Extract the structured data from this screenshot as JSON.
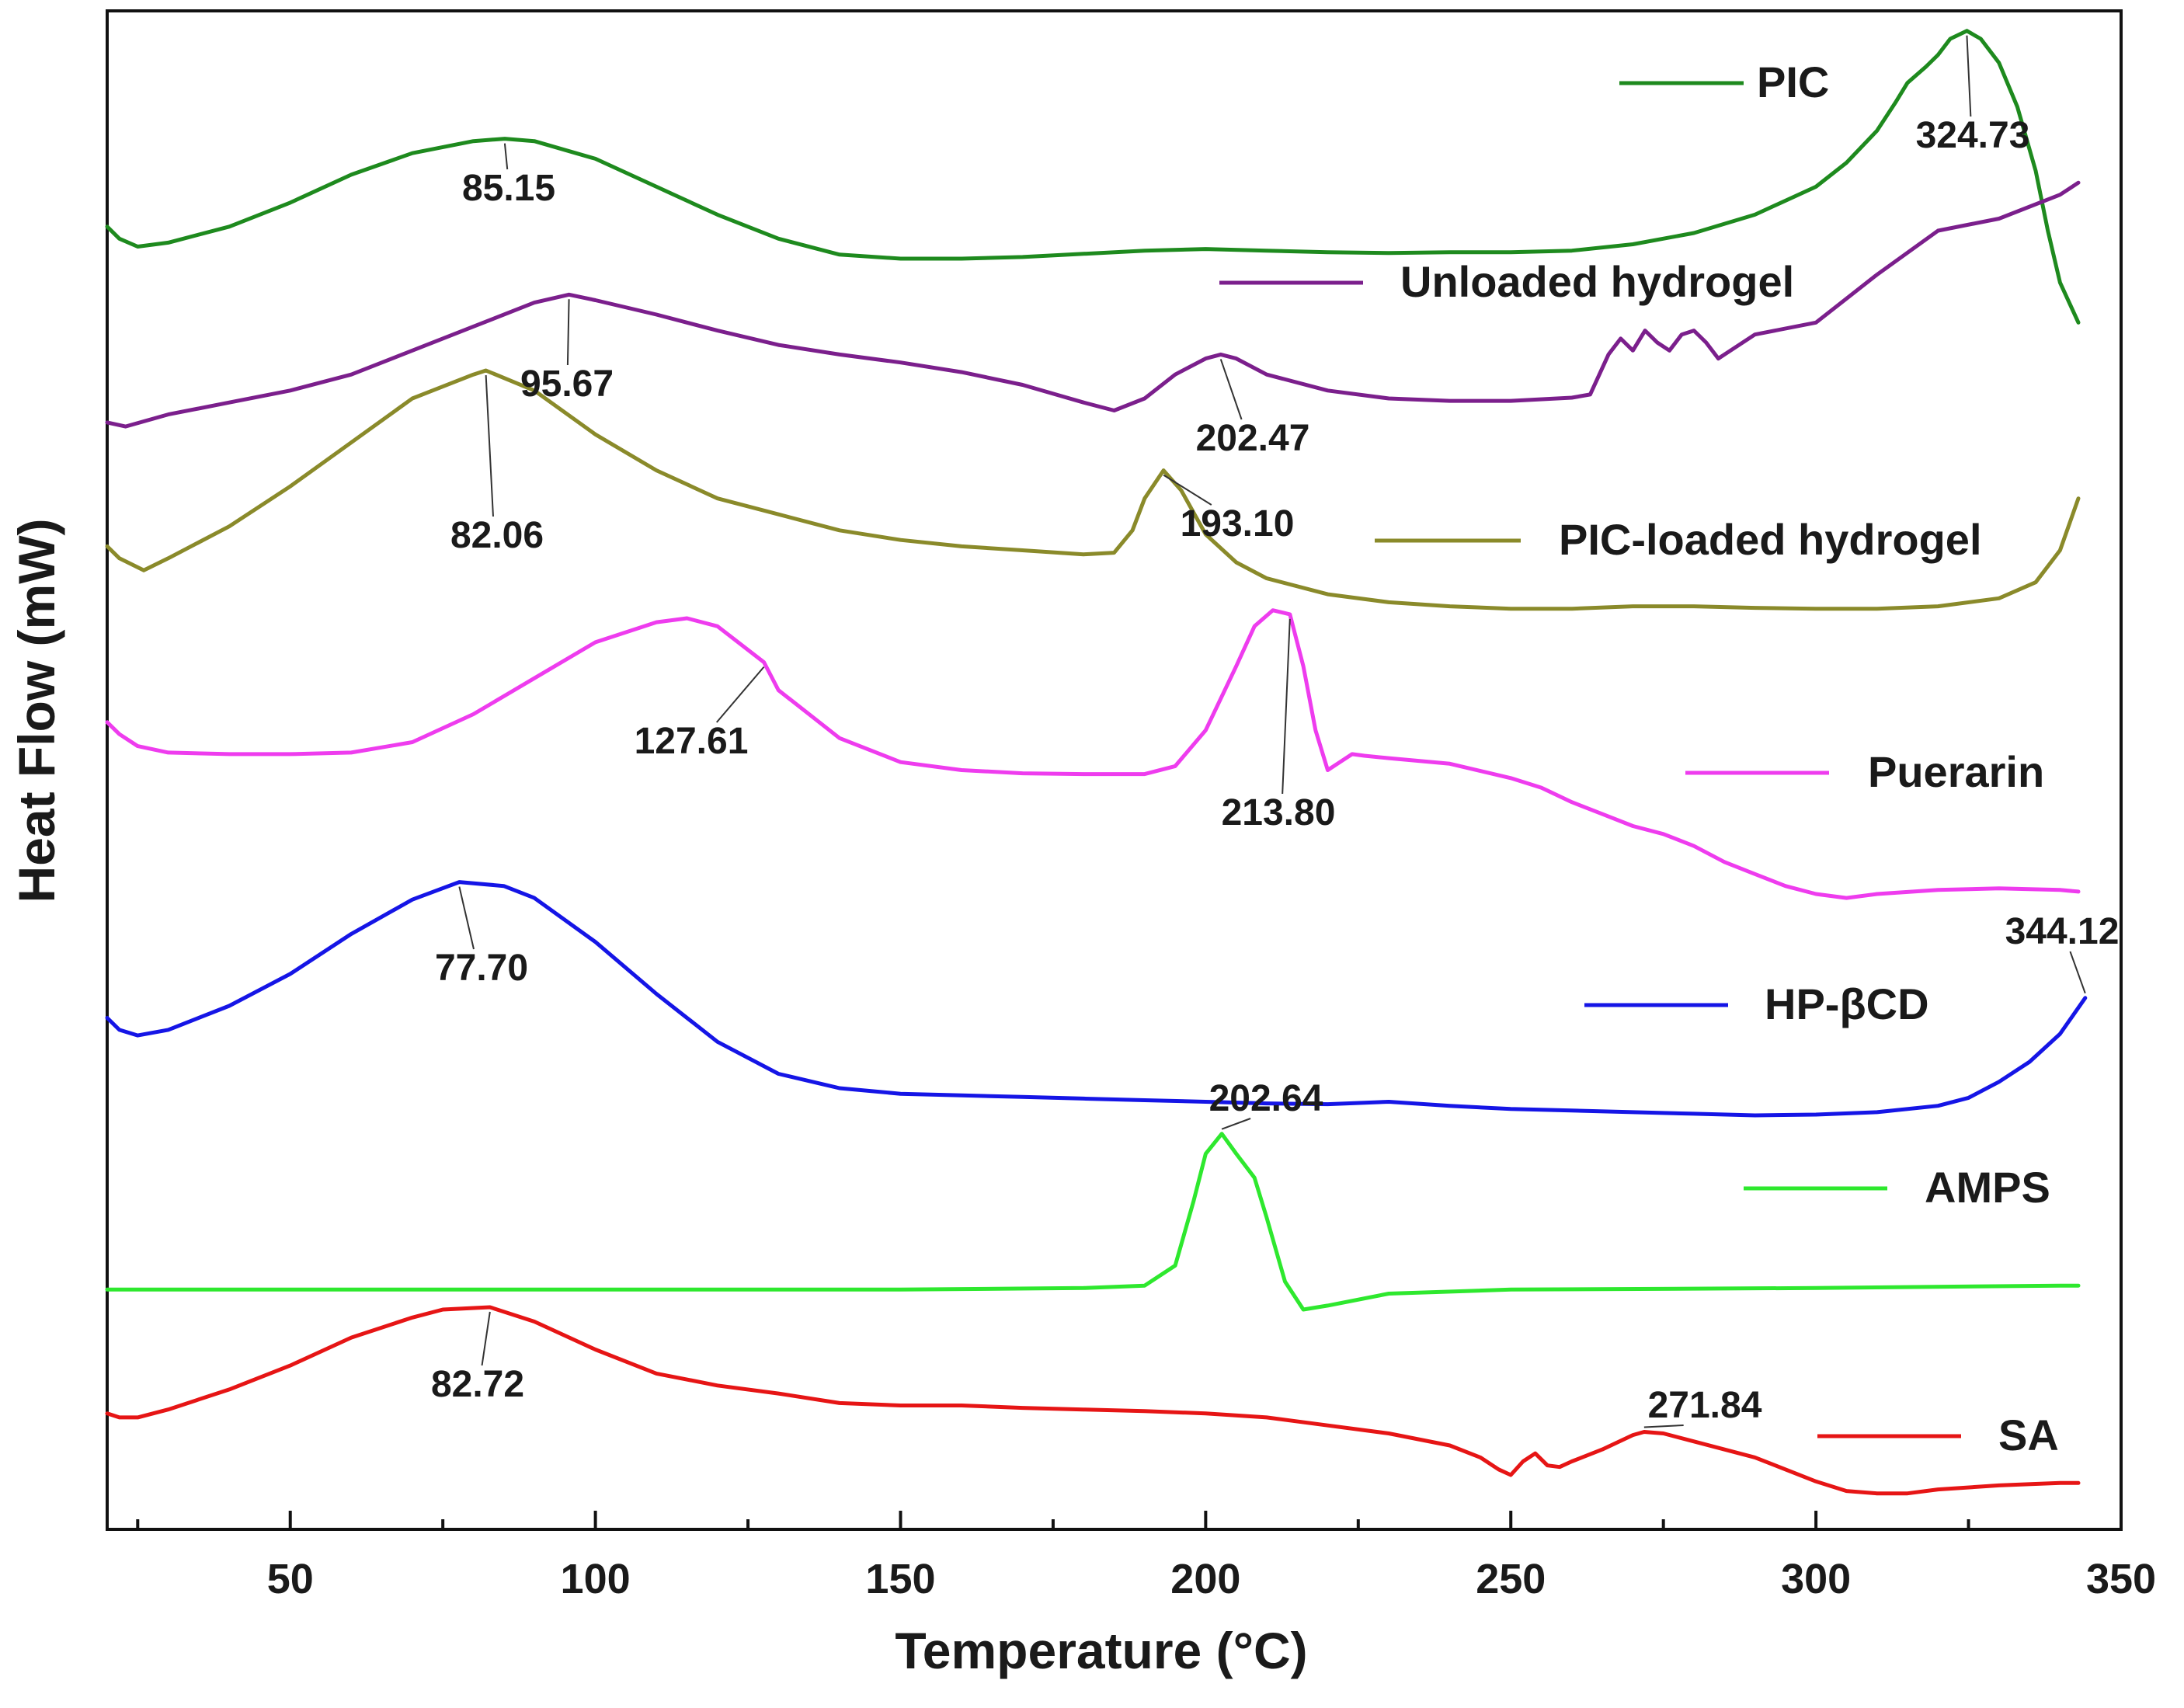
{
  "chart_data": {
    "type": "line",
    "title": "",
    "xlabel": "Temperature (°C)",
    "ylabel": "Heat Flow (mW)",
    "xlim": [
      20,
      350
    ],
    "xticks": [
      50,
      100,
      150,
      200,
      250,
      300,
      350
    ],
    "yticks_shown": false,
    "grid": false,
    "legend": "per-curve, right side",
    "series": [
      {
        "name": "PIC",
        "color": "#1e8a1e",
        "x": [
          20,
          22,
          25,
          30,
          40,
          50,
          60,
          70,
          80,
          85.15,
          90,
          100,
          110,
          120,
          130,
          140,
          150,
          160,
          170,
          180,
          190,
          200,
          210,
          220,
          230,
          240,
          250,
          260,
          270,
          280,
          290,
          300,
          305,
          310,
          313,
          315,
          318,
          320,
          322,
          324.73,
          327,
          330,
          333,
          336,
          338,
          340,
          343
        ],
        "y": [
          6.9,
          6.75,
          6.65,
          6.7,
          6.9,
          7.2,
          7.55,
          7.82,
          7.97,
          8.0,
          7.97,
          7.75,
          7.4,
          7.05,
          6.75,
          6.55,
          6.5,
          6.5,
          6.52,
          6.56,
          6.6,
          6.62,
          6.6,
          6.58,
          6.57,
          6.58,
          6.58,
          6.6,
          6.68,
          6.82,
          7.05,
          7.4,
          7.7,
          8.1,
          8.45,
          8.7,
          8.9,
          9.05,
          9.25,
          9.35,
          9.25,
          8.95,
          8.4,
          7.6,
          6.85,
          6.2,
          5.7
        ]
      },
      {
        "name": "Unloaded hydrogel",
        "color": "#7b1f8c",
        "x": [
          20,
          23,
          30,
          40,
          50,
          60,
          70,
          80,
          90,
          95.67,
          100,
          110,
          120,
          130,
          140,
          150,
          160,
          170,
          180,
          185,
          190,
          195,
          200,
          202.47,
          205,
          210,
          220,
          230,
          240,
          250,
          260,
          263,
          266,
          268,
          270,
          272,
          274,
          276,
          278,
          280,
          282,
          284,
          286,
          290,
          300,
          310,
          320,
          330,
          340,
          343
        ],
        "y": [
          4.45,
          4.4,
          4.55,
          4.7,
          4.85,
          5.05,
          5.35,
          5.65,
          5.95,
          6.05,
          5.98,
          5.8,
          5.6,
          5.42,
          5.3,
          5.2,
          5.08,
          4.92,
          4.7,
          4.6,
          4.75,
          5.05,
          5.25,
          5.3,
          5.25,
          5.05,
          4.85,
          4.75,
          4.72,
          4.72,
          4.76,
          4.8,
          5.3,
          5.5,
          5.35,
          5.6,
          5.45,
          5.35,
          5.55,
          5.6,
          5.45,
          5.25,
          5.35,
          5.55,
          5.7,
          6.3,
          6.85,
          7.0,
          7.3,
          7.45
        ]
      },
      {
        "name": "PIC-loaded hydrogel",
        "color": "#8a8a2a",
        "x": [
          20,
          22,
          26,
          30,
          40,
          50,
          60,
          70,
          80,
          82.06,
          90,
          100,
          110,
          120,
          130,
          140,
          150,
          160,
          170,
          180,
          185,
          188,
          190,
          193.1,
          196,
          200,
          205,
          210,
          220,
          230,
          240,
          250,
          260,
          270,
          280,
          290,
          300,
          310,
          320,
          330,
          336,
          340,
          343
        ],
        "y": [
          2.9,
          2.75,
          2.6,
          2.75,
          3.15,
          3.65,
          4.2,
          4.75,
          5.05,
          5.1,
          4.85,
          4.3,
          3.85,
          3.5,
          3.3,
          3.1,
          2.98,
          2.9,
          2.85,
          2.8,
          2.82,
          3.1,
          3.5,
          3.85,
          3.6,
          3.05,
          2.7,
          2.5,
          2.3,
          2.2,
          2.15,
          2.12,
          2.12,
          2.15,
          2.15,
          2.13,
          2.12,
          2.12,
          2.15,
          2.25,
          2.45,
          2.85,
          3.5
        ]
      },
      {
        "name": "Puerarin",
        "color": "#ee3cee",
        "x": [
          20,
          22,
          25,
          30,
          40,
          50,
          60,
          70,
          80,
          90,
          100,
          110,
          115,
          120,
          127.61,
          130,
          140,
          150,
          160,
          170,
          180,
          190,
          195,
          200,
          205,
          208,
          211,
          213.8,
          216,
          218,
          220,
          222,
          224,
          226,
          230,
          240,
          250,
          255,
          260,
          265,
          270,
          275,
          280,
          285,
          290,
          295,
          300,
          305,
          310,
          320,
          330,
          340,
          343
        ],
        "y": [
          0.7,
          0.55,
          0.4,
          0.32,
          0.3,
          0.3,
          0.32,
          0.45,
          0.8,
          1.25,
          1.7,
          1.95,
          2.0,
          1.9,
          1.45,
          1.1,
          0.5,
          0.2,
          0.1,
          0.06,
          0.05,
          0.05,
          0.15,
          0.6,
          1.4,
          1.9,
          2.1,
          2.05,
          1.4,
          0.6,
          0.1,
          0.2,
          0.3,
          0.28,
          0.25,
          0.18,
          0.0,
          -0.12,
          -0.3,
          -0.45,
          -0.6,
          -0.7,
          -0.85,
          -1.05,
          -1.2,
          -1.35,
          -1.45,
          -1.5,
          -1.45,
          -1.4,
          -1.38,
          -1.4,
          -1.42
        ]
      },
      {
        "name": "HP-βCD",
        "color": "#1515e6",
        "x": [
          20,
          22,
          25,
          30,
          40,
          50,
          60,
          70,
          77.7,
          85,
          90,
          100,
          110,
          120,
          130,
          140,
          150,
          160,
          170,
          180,
          190,
          200,
          210,
          220,
          230,
          240,
          250,
          260,
          270,
          280,
          290,
          300,
          310,
          320,
          325,
          330,
          335,
          340,
          344.12
        ],
        "y": [
          -3.0,
          -3.15,
          -3.22,
          -3.15,
          -2.85,
          -2.45,
          -1.95,
          -1.52,
          -1.3,
          -1.35,
          -1.5,
          -2.05,
          -2.7,
          -3.3,
          -3.7,
          -3.88,
          -3.95,
          -3.97,
          -3.99,
          -4.01,
          -4.03,
          -4.05,
          -4.07,
          -4.08,
          -4.05,
          -4.1,
          -4.14,
          -4.16,
          -4.18,
          -4.2,
          -4.22,
          -4.21,
          -4.18,
          -4.1,
          -4.0,
          -3.8,
          -3.55,
          -3.2,
          -2.75
        ]
      },
      {
        "name": "AMPS",
        "color": "#2ee82e",
        "x": [
          20,
          50,
          100,
          150,
          180,
          190,
          195,
          198,
          200,
          202.64,
          205,
          208,
          210,
          213,
          216,
          220,
          230,
          250,
          300,
          340,
          343
        ],
        "y": [
          -6.4,
          -6.4,
          -6.4,
          -6.4,
          -6.38,
          -6.35,
          -6.1,
          -5.3,
          -4.7,
          -4.45,
          -4.7,
          -5.0,
          -5.5,
          -6.3,
          -6.65,
          -6.6,
          -6.45,
          -6.4,
          -6.38,
          -6.35,
          -6.35
        ]
      },
      {
        "name": "SA",
        "color": "#e61515",
        "x": [
          20,
          22,
          25,
          30,
          40,
          50,
          60,
          70,
          75,
          82.72,
          90,
          100,
          110,
          120,
          130,
          140,
          150,
          160,
          170,
          180,
          190,
          200,
          210,
          220,
          230,
          240,
          245,
          248,
          250,
          252,
          254,
          256,
          258,
          260,
          265,
          270,
          271.84,
          275,
          280,
          290,
          300,
          305,
          310,
          315,
          320,
          330,
          340,
          343
        ],
        "y": [
          -7.95,
          -8.0,
          -8.0,
          -7.9,
          -7.65,
          -7.35,
          -7.0,
          -6.75,
          -6.65,
          -6.62,
          -6.8,
          -7.15,
          -7.45,
          -7.6,
          -7.7,
          -7.82,
          -7.85,
          -7.85,
          -7.88,
          -7.9,
          -7.92,
          -7.95,
          -8.0,
          -8.1,
          -8.2,
          -8.35,
          -8.5,
          -8.65,
          -8.72,
          -8.55,
          -8.45,
          -8.6,
          -8.62,
          -8.55,
          -8.4,
          -8.22,
          -8.18,
          -8.2,
          -8.3,
          -8.5,
          -8.8,
          -8.92,
          -8.95,
          -8.95,
          -8.9,
          -8.85,
          -8.82,
          -8.82
        ]
      }
    ],
    "annotations": [
      {
        "text": "85.15",
        "x": 85.15,
        "y": 8.0
      },
      {
        "text": "324.73",
        "x": 324.73,
        "y": 9.35
      },
      {
        "text": "95.67",
        "x": 95.67,
        "y": 6.05
      },
      {
        "text": "202.47",
        "x": 202.47,
        "y": 5.3
      },
      {
        "text": "82.06",
        "x": 82.06,
        "y": 5.1
      },
      {
        "text": "193.10",
        "x": 193.1,
        "y": 3.85
      },
      {
        "text": "127.61",
        "x": 127.61,
        "y": 1.45
      },
      {
        "text": "213.80",
        "x": 213.8,
        "y": 2.05
      },
      {
        "text": "77.70",
        "x": 77.7,
        "y": -1.3
      },
      {
        "text": "344.12",
        "x": 344.12,
        "y": -2.75
      },
      {
        "text": "202.64",
        "x": 202.64,
        "y": -4.45
      },
      {
        "text": "82.72",
        "x": 82.72,
        "y": -6.62
      },
      {
        "text": "271.84",
        "x": 271.84,
        "y": -8.18
      }
    ]
  }
}
